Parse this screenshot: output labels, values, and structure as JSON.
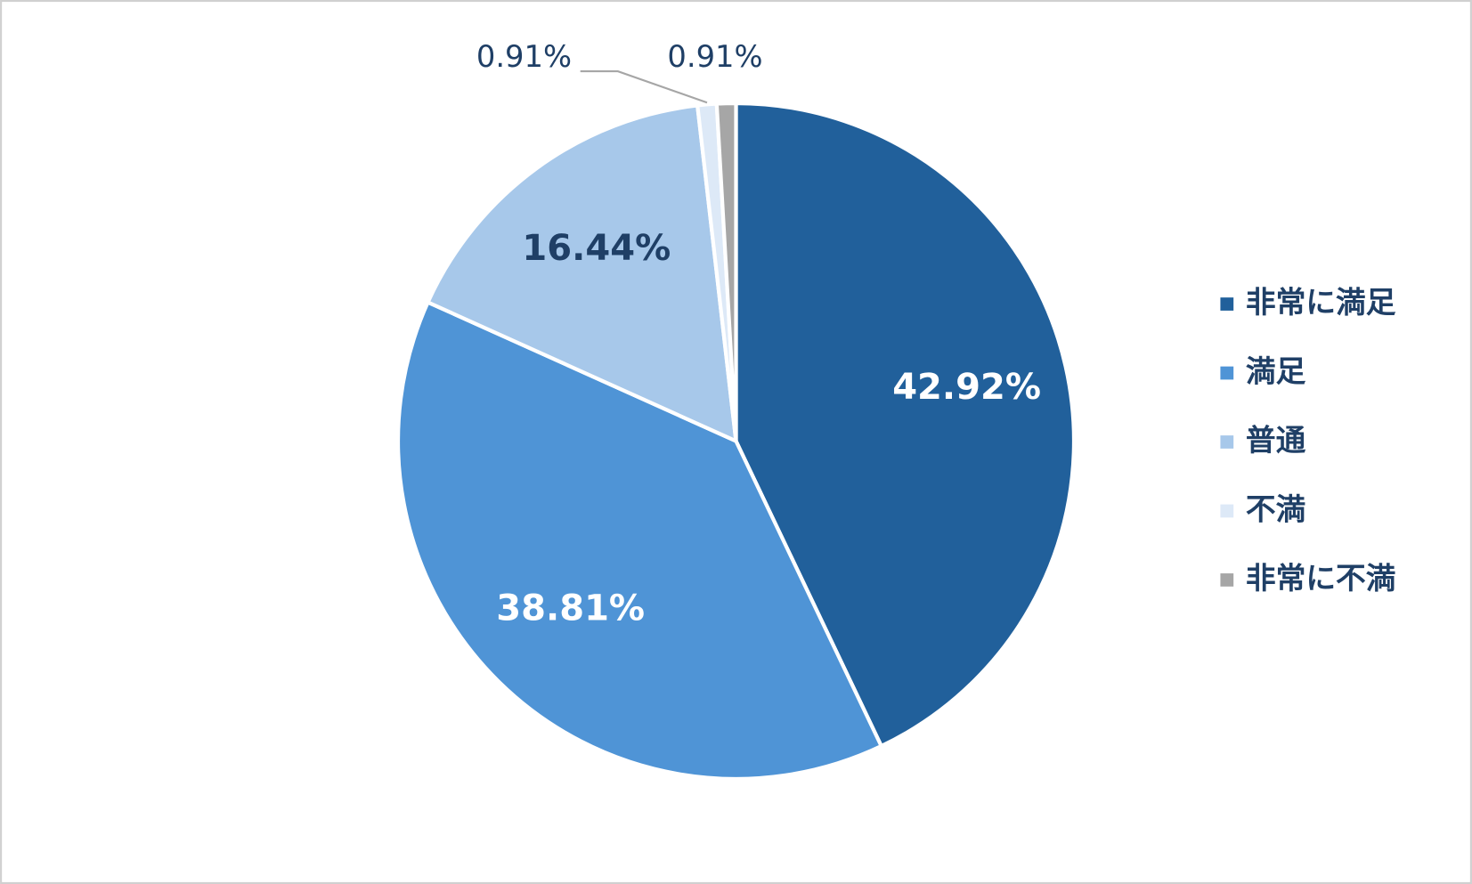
{
  "chart_data": {
    "type": "pie",
    "categories": [
      "非常に満足",
      "満足",
      "普通",
      "不満",
      "非常に不満"
    ],
    "values": [
      42.92,
      38.81,
      16.44,
      0.91,
      0.91
    ],
    "value_labels": [
      "42.92%",
      "38.81%",
      "16.44%",
      "0.91%",
      "0.91%"
    ],
    "colors": [
      "#21609b",
      "#4f94d6",
      "#a7c8ea",
      "#dde9f7",
      "#a6a6a6"
    ],
    "legend": "right"
  }
}
